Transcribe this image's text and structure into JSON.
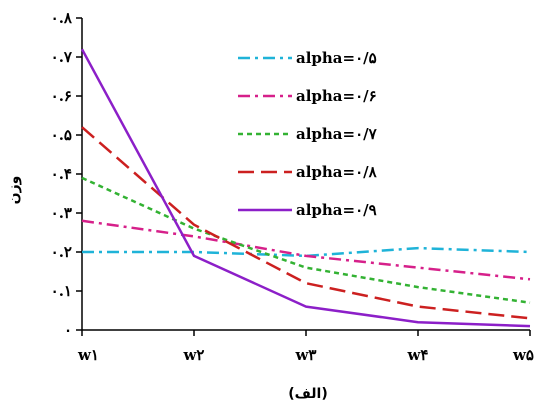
{
  "chart_data": {
    "type": "line",
    "caption": "(الف)",
    "xlabel": "",
    "ylabel": "وزن",
    "categories": [
      "w۱",
      "w۲",
      "w۳",
      "w۴",
      "w۵"
    ],
    "ylim": [
      0,
      0.8
    ],
    "yticks": [
      0,
      0.1,
      0.2,
      0.3,
      0.4,
      0.5,
      0.6,
      0.7,
      0.8
    ],
    "ytick_labels": [
      "۰",
      "۰.۱",
      "۰.۲",
      "۰.۳",
      "۰.۴",
      "۰.۵",
      "۰.۶",
      "۰.۷",
      "۰.۸"
    ],
    "grid": false,
    "legend_position": "top-right",
    "series": [
      {
        "name": "alpha=۰/۵",
        "color": "#1fb3d8",
        "dash": "dashdot",
        "values": [
          0.2,
          0.2,
          0.19,
          0.21,
          0.2
        ]
      },
      {
        "name": "alpha=۰/۶",
        "color": "#d6208a",
        "dash": "dashdot",
        "values": [
          0.28,
          0.24,
          0.19,
          0.16,
          0.13
        ]
      },
      {
        "name": "alpha=۰/۷",
        "color": "#33b233",
        "dash": "dotted",
        "values": [
          0.39,
          0.26,
          0.16,
          0.11,
          0.07
        ]
      },
      {
        "name": "alpha=۰/۸",
        "color": "#cc2020",
        "dash": "dashed",
        "values": [
          0.52,
          0.27,
          0.12,
          0.06,
          0.03
        ]
      },
      {
        "name": "alpha=۰/۹",
        "color": "#8c1fc8",
        "dash": "solid",
        "values": [
          0.72,
          0.19,
          0.06,
          0.02,
          0.01
        ]
      }
    ]
  }
}
